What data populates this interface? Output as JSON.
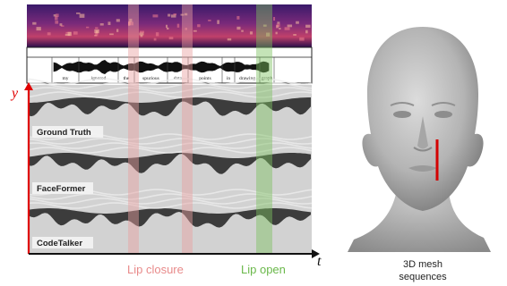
{
  "words": [
    "my",
    "ignored",
    "the",
    "spurious",
    "data",
    "points",
    "in",
    "drawing",
    "graph"
  ],
  "tracks": [
    {
      "label": "Ground Truth"
    },
    {
      "label": "FaceFormer"
    },
    {
      "label": "CodeTalker"
    }
  ],
  "axis": {
    "y": "y",
    "t": "t"
  },
  "legend": {
    "lip_closure": "Lip closure",
    "lip_open": "Lip open"
  },
  "mesh_caption": {
    "line1": "3D mesh",
    "line2": "sequences"
  },
  "colors": {
    "lip_closure": "#e8a0a0",
    "lip_open": "#7cc060",
    "axis": "#e00000",
    "mesh_marker": "#d40000",
    "legend_closure_text": "#e88a8a",
    "legend_open_text": "#6ab84a"
  }
}
